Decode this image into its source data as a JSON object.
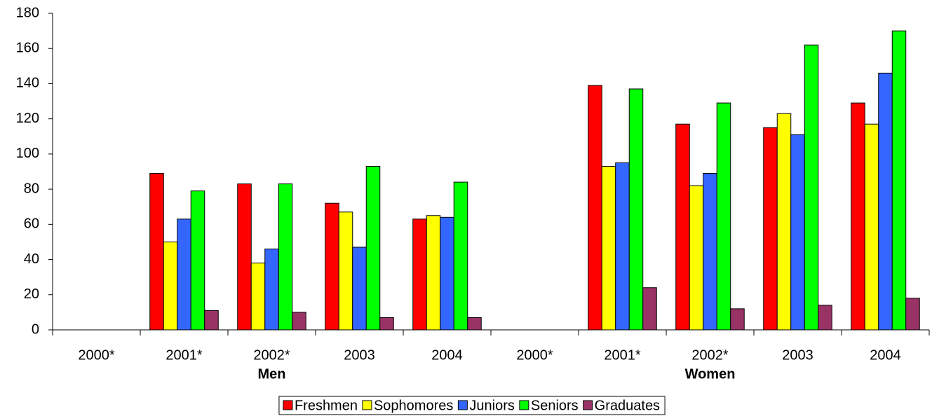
{
  "chart_data": {
    "type": "bar",
    "categories": [
      "2000*",
      "2001*",
      "2002*",
      "2003",
      "2004",
      "2000*",
      "2001*",
      "2002*",
      "2003",
      "2004"
    ],
    "groups": [
      "Men",
      "Women"
    ],
    "series": [
      {
        "name": "Freshmen",
        "color": "#ff0000",
        "values": [
          null,
          89,
          83,
          72,
          63,
          null,
          139,
          117,
          115,
          129
        ]
      },
      {
        "name": "Sophomores",
        "color": "#ffff00",
        "values": [
          null,
          50,
          38,
          67,
          65,
          null,
          93,
          82,
          123,
          117
        ]
      },
      {
        "name": "Juniors",
        "color": "#3366ff",
        "values": [
          null,
          63,
          46,
          47,
          64,
          null,
          95,
          89,
          111,
          146
        ]
      },
      {
        "name": "Seniors",
        "color": "#00ff00",
        "values": [
          null,
          79,
          83,
          93,
          84,
          null,
          137,
          129,
          162,
          170
        ]
      },
      {
        "name": "Graduates",
        "color": "#993366",
        "values": [
          null,
          11,
          10,
          7,
          7,
          null,
          24,
          12,
          14,
          18
        ]
      }
    ],
    "ylim": [
      0,
      180
    ],
    "yticks": [
      0,
      20,
      40,
      60,
      80,
      100,
      120,
      140,
      160,
      180
    ],
    "grid": false
  }
}
